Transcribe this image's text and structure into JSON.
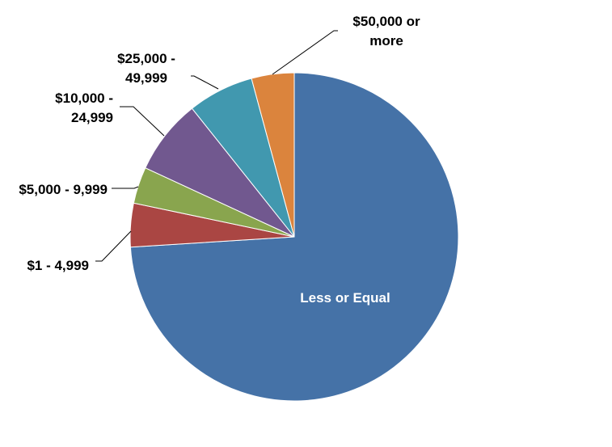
{
  "chart_data": {
    "type": "pie",
    "title": "",
    "categories": [
      "Less or Equal",
      "$1 - 4,999",
      "$5,000 - 9,999",
      "$10,000 - 24,999",
      "$25,000 - 49,999",
      "$50,000 or more"
    ],
    "values": [
      74.0,
      4.3,
      3.6,
      7.4,
      6.5,
      4.2
    ],
    "colors": [
      "#4572A7",
      "#AA4643",
      "#89A54E",
      "#71588F",
      "#4198AF",
      "#DB843D"
    ],
    "start_angle_deg": 0,
    "direction": "clockwise",
    "legend": "none",
    "labels": [
      {
        "lines": [
          "Less or Equal"
        ],
        "placement": "inside"
      },
      {
        "lines": [
          "$1 - 4,999"
        ],
        "placement": "outside-left"
      },
      {
        "lines": [
          "$5,000 - 9,999"
        ],
        "placement": "outside-left"
      },
      {
        "lines": [
          "$10,000 -",
          "24,999"
        ],
        "placement": "outside-left"
      },
      {
        "lines": [
          "$25,000 -",
          "49,999"
        ],
        "placement": "outside-top-left"
      },
      {
        "lines": [
          "$50,000 or",
          "more"
        ],
        "placement": "outside-top-right"
      }
    ]
  }
}
